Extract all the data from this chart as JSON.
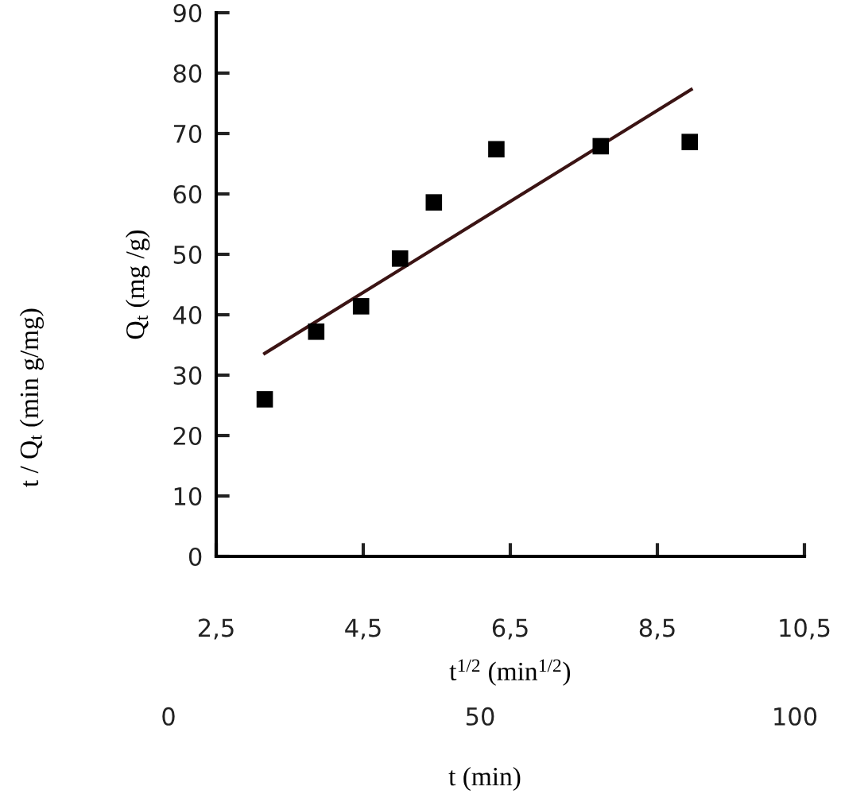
{
  "chart_data": {
    "type": "scatter",
    "xlabel": "t$^{1/2}$ (min$^{1/2}$)",
    "ylabel": "Q$_{t}$ (mg /g)",
    "x": [
      3.16,
      3.86,
      4.47,
      5.0,
      5.46,
      6.31,
      7.73,
      8.94
    ],
    "series": [
      {
        "color": "#000000",
        "marker": "square",
        "values": [
          26.0,
          37.2,
          41.4,
          49.3,
          58.6,
          67.4,
          67.9,
          68.6
        ]
      },
      {
        "type": "line",
        "color": "#3b1414",
        "marker": "none",
        "line_style": "solid",
        "x": [
          3.16,
          8.96
        ],
        "values": [
          33.6,
          77.3
        ]
      }
    ],
    "xlim": [
      2.5,
      10.5
    ],
    "xticks": [
      {
        "value": 2.5,
        "label": "2,5"
      },
      {
        "value": 4.5,
        "label": "4,5"
      },
      {
        "value": 6.5,
        "label": "6,5"
      },
      {
        "value": 8.5,
        "label": "8,5"
      },
      {
        "value": 10.5,
        "label": "10,5"
      }
    ],
    "ylim": [
      0,
      90
    ],
    "yticks": [
      0,
      10,
      20,
      30,
      40,
      50,
      60,
      70,
      80,
      90
    ],
    "grid": false,
    "legend": false,
    "annotations": [
      "0",
      "50",
      "100",
      "t (min)",
      "t / Q$_{t}$ (min g/mg)"
    ]
  }
}
